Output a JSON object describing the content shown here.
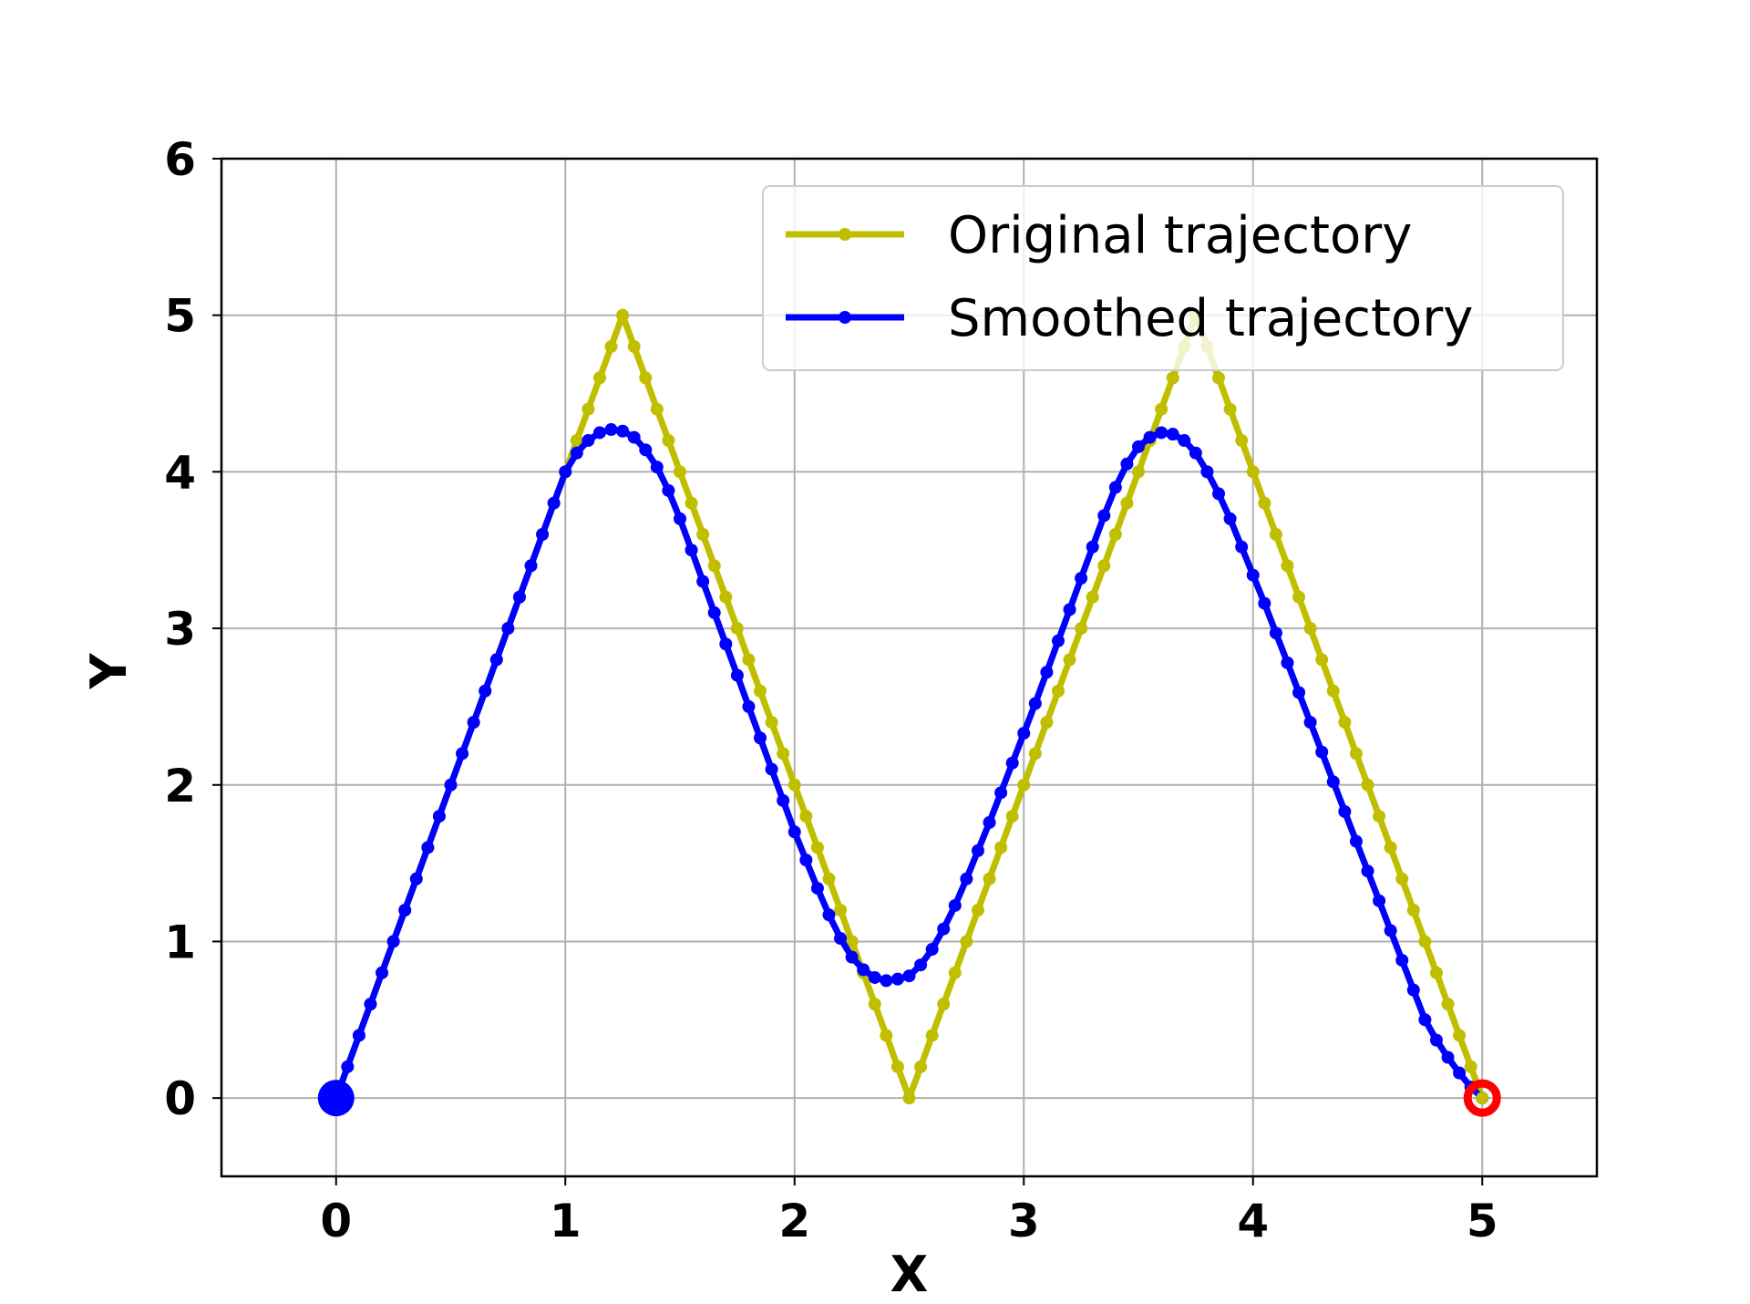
{
  "chart_data": {
    "type": "line",
    "title": "",
    "xlabel": "X",
    "ylabel": "Y",
    "xlim": [
      -0.5,
      5.5
    ],
    "ylim": [
      -0.5,
      6
    ],
    "xticks": [
      "0",
      "1",
      "2",
      "3",
      "4",
      "5"
    ],
    "yticks": [
      "0",
      "1",
      "2",
      "3",
      "4",
      "5",
      "6"
    ],
    "grid": true,
    "legend_position": "top-right",
    "series": [
      {
        "name": "Original trajectory",
        "color": "#bfbf00",
        "x": [
          0.0,
          0.05,
          0.1,
          0.15,
          0.2,
          0.25,
          0.3,
          0.35,
          0.4,
          0.45,
          0.5,
          0.55,
          0.6,
          0.65,
          0.7,
          0.75,
          0.8,
          0.85,
          0.9,
          0.95,
          1.0,
          1.05,
          1.1,
          1.15,
          1.2,
          1.25,
          1.3,
          1.35,
          1.4,
          1.45,
          1.5,
          1.55,
          1.6,
          1.65,
          1.7,
          1.75,
          1.8,
          1.85,
          1.9,
          1.95,
          2.0,
          2.05,
          2.1,
          2.15,
          2.2,
          2.25,
          2.3,
          2.35,
          2.4,
          2.45,
          2.5,
          2.55,
          2.6,
          2.65,
          2.7,
          2.75,
          2.8,
          2.85,
          2.9,
          2.95,
          3.0,
          3.05,
          3.1,
          3.15,
          3.2,
          3.25,
          3.3,
          3.35,
          3.4,
          3.45,
          3.5,
          3.55,
          3.6,
          3.65,
          3.7,
          3.75,
          3.8,
          3.85,
          3.9,
          3.95,
          4.0,
          4.05,
          4.1,
          4.15,
          4.2,
          4.25,
          4.3,
          4.35,
          4.4,
          4.45,
          4.5,
          4.55,
          4.6,
          4.65,
          4.7,
          4.75,
          4.8,
          4.85,
          4.9,
          4.95,
          5.0
        ],
        "y": [
          0.0,
          0.2,
          0.4,
          0.6,
          0.8,
          1.0,
          1.2,
          1.4,
          1.6,
          1.8,
          2.0,
          2.2,
          2.4,
          2.6,
          2.8,
          3.0,
          3.2,
          3.4,
          3.6,
          3.8,
          4.0,
          4.2,
          4.4,
          4.6,
          4.8,
          5.0,
          4.8,
          4.6,
          4.4,
          4.2,
          4.0,
          3.8,
          3.6,
          3.4,
          3.2,
          3.0,
          2.8,
          2.6,
          2.4,
          2.2,
          2.0,
          1.8,
          1.6,
          1.4,
          1.2,
          1.0,
          0.8,
          0.6,
          0.4,
          0.2,
          0.0,
          0.2,
          0.4,
          0.6,
          0.8,
          1.0,
          1.2,
          1.4,
          1.6,
          1.8,
          2.0,
          2.2,
          2.4,
          2.6,
          2.8,
          3.0,
          3.2,
          3.4,
          3.6,
          3.8,
          4.0,
          4.2,
          4.4,
          4.6,
          4.8,
          5.0,
          4.8,
          4.6,
          4.4,
          4.2,
          4.0,
          3.8,
          3.6,
          3.4,
          3.2,
          3.0,
          2.8,
          2.6,
          2.4,
          2.2,
          2.0,
          1.8,
          1.6,
          1.4,
          1.2,
          1.0,
          0.8,
          0.6,
          0.4,
          0.2,
          0.0
        ]
      },
      {
        "name": "Smoothed trajectory",
        "color": "#0000ff",
        "x": [
          0.0,
          0.05,
          0.1,
          0.15,
          0.2,
          0.25,
          0.3,
          0.35,
          0.4,
          0.45,
          0.5,
          0.55,
          0.6,
          0.65,
          0.7,
          0.75,
          0.8,
          0.85,
          0.9,
          0.95,
          1.0,
          1.05,
          1.1,
          1.15,
          1.2,
          1.25,
          1.3,
          1.35,
          1.4,
          1.45,
          1.5,
          1.55,
          1.6,
          1.65,
          1.7,
          1.75,
          1.8,
          1.85,
          1.9,
          1.95,
          2.0,
          2.05,
          2.1,
          2.15,
          2.2,
          2.25,
          2.3,
          2.35,
          2.4,
          2.45,
          2.5,
          2.55,
          2.6,
          2.65,
          2.7,
          2.75,
          2.8,
          2.85,
          2.9,
          2.95,
          3.0,
          3.05,
          3.1,
          3.15,
          3.2,
          3.25,
          3.3,
          3.35,
          3.4,
          3.45,
          3.5,
          3.55,
          3.6,
          3.65,
          3.7,
          3.75,
          3.8,
          3.85,
          3.9,
          3.95,
          4.0,
          4.05,
          4.1,
          4.15,
          4.2,
          4.25,
          4.3,
          4.35,
          4.4,
          4.45,
          4.5,
          4.55,
          4.6,
          4.65,
          4.7,
          4.75,
          4.8,
          4.85,
          4.9,
          4.95,
          5.0
        ],
        "y": [
          0.0,
          0.2,
          0.4,
          0.6,
          0.8,
          1.0,
          1.2,
          1.4,
          1.6,
          1.8,
          2.0,
          2.2,
          2.4,
          2.6,
          2.8,
          3.0,
          3.2,
          3.4,
          3.6,
          3.8,
          4.0,
          4.12,
          4.2,
          4.25,
          4.27,
          4.26,
          4.22,
          4.14,
          4.03,
          3.88,
          3.7,
          3.5,
          3.3,
          3.1,
          2.9,
          2.7,
          2.5,
          2.3,
          2.1,
          1.9,
          1.7,
          1.52,
          1.34,
          1.17,
          1.02,
          0.9,
          0.82,
          0.77,
          0.75,
          0.76,
          0.78,
          0.85,
          0.95,
          1.08,
          1.23,
          1.4,
          1.58,
          1.76,
          1.95,
          2.14,
          2.33,
          2.52,
          2.72,
          2.92,
          3.12,
          3.32,
          3.52,
          3.72,
          3.9,
          4.05,
          4.16,
          4.22,
          4.25,
          4.24,
          4.2,
          4.12,
          4.0,
          3.86,
          3.7,
          3.52,
          3.34,
          3.16,
          2.97,
          2.78,
          2.59,
          2.4,
          2.21,
          2.02,
          1.83,
          1.64,
          1.45,
          1.26,
          1.07,
          0.88,
          0.69,
          0.5,
          0.37,
          0.26,
          0.16,
          0.07,
          0.0
        ]
      }
    ],
    "markers": {
      "start": {
        "x": 0,
        "y": 0,
        "color": "#0000ff"
      },
      "end": {
        "x": 5,
        "y": 0,
        "color": "#ff0000"
      }
    }
  }
}
